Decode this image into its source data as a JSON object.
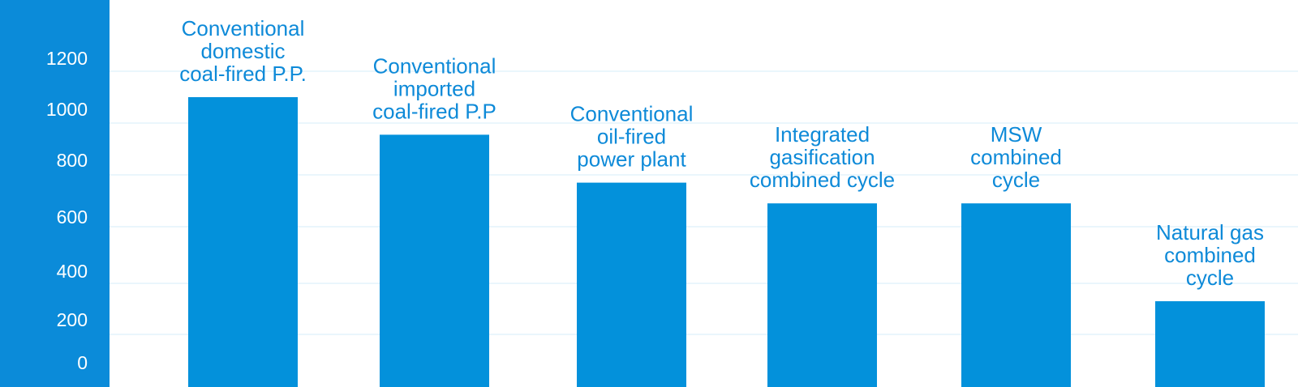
{
  "colors": {
    "bar": "#0391db",
    "axis_panel": "#0b8bd9",
    "axis_text": "#ffffff",
    "label_text": "#0e8ad8",
    "gridline": "#d6ecf8",
    "background": "#ffffff"
  },
  "chart_data": {
    "type": "bar",
    "title": "",
    "xlabel": "",
    "ylabel": "",
    "grid": true,
    "legend": "none",
    "y_ticks": [
      0,
      200,
      400,
      600,
      800,
      1000,
      1200
    ],
    "categories": [
      [
        "Conventional",
        "domestic",
        "coal-fired P.P."
      ],
      [
        "Conventional",
        "imported",
        "coal-fired P.P"
      ],
      [
        "Conventional",
        "oil-fired",
        "power plant"
      ],
      [
        "Integrated",
        "gasification",
        "combined cycle"
      ],
      [
        "MSW",
        "combined",
        "cycle"
      ],
      [
        "Natural gas",
        "combined",
        "cycle"
      ]
    ],
    "values": [
      1100,
      955,
      770,
      690,
      690,
      330
    ]
  }
}
